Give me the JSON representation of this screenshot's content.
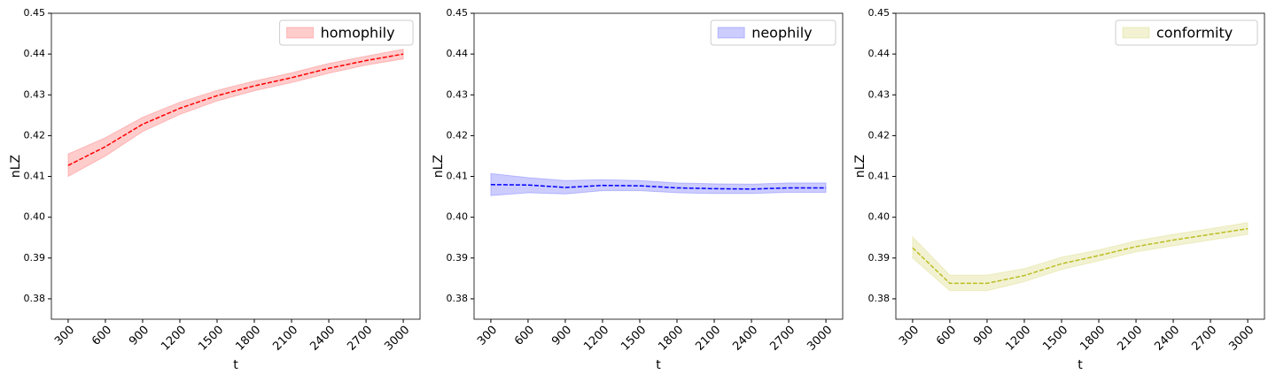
{
  "chart_data": [
    {
      "type": "band-line",
      "xlabel": "t",
      "ylabel": "nLZ",
      "x": [
        300,
        600,
        900,
        1200,
        1500,
        1800,
        2100,
        2400,
        2700,
        3000
      ],
      "xlim": [
        165,
        3135
      ],
      "xticks": [
        300,
        600,
        900,
        1200,
        1500,
        1800,
        2100,
        2400,
        2700,
        3000
      ],
      "ylim": [
        0.375,
        0.45
      ],
      "yticks": [
        0.38,
        0.39,
        {
          "value": 0.4,
          "label": "0.40"
        },
        0.41,
        0.42,
        0.43,
        0.44,
        0.45
      ],
      "legend": "upper right",
      "series": [
        {
          "name": "homophily",
          "color": "#ff0000",
          "values": [
            0.4127,
            0.4173,
            0.4228,
            0.4267,
            0.4298,
            0.4322,
            0.4342,
            0.4365,
            0.4384,
            0.44
          ],
          "lower": [
            0.41,
            0.415,
            0.421,
            0.4252,
            0.4285,
            0.431,
            0.433,
            0.4353,
            0.4373,
            0.4388
          ],
          "upper": [
            0.4155,
            0.4195,
            0.4245,
            0.4282,
            0.4311,
            0.4334,
            0.4354,
            0.4377,
            0.4395,
            0.4412
          ]
        }
      ]
    },
    {
      "type": "band-line",
      "xlabel": "t",
      "ylabel": "nLZ",
      "x": [
        300,
        600,
        900,
        1200,
        1500,
        1800,
        2100,
        2400,
        2700,
        3000
      ],
      "xlim": [
        165,
        3135
      ],
      "xticks": [
        300,
        600,
        900,
        1200,
        1500,
        1800,
        2100,
        2400,
        2700,
        3000
      ],
      "ylim": [
        0.375,
        0.45
      ],
      "yticks": [
        0.38,
        0.39,
        {
          "value": 0.4,
          "label": "0.40"
        },
        0.41,
        0.42,
        0.43,
        0.44,
        0.45
      ],
      "legend": "upper right",
      "series": [
        {
          "name": "neophily",
          "color": "#0000ff",
          "values": [
            0.408,
            0.4079,
            0.4073,
            0.4078,
            0.4077,
            0.4072,
            0.407,
            0.4069,
            0.4072,
            0.4072
          ],
          "lower": [
            0.4053,
            0.406,
            0.4057,
            0.4065,
            0.4065,
            0.406,
            0.4058,
            0.4058,
            0.4061,
            0.4061
          ],
          "upper": [
            0.4107,
            0.4097,
            0.409,
            0.4092,
            0.409,
            0.4084,
            0.4082,
            0.4081,
            0.4084,
            0.4084
          ]
        }
      ]
    },
    {
      "type": "band-line",
      "xlabel": "t",
      "ylabel": "nLZ",
      "x": [
        300,
        600,
        900,
        1200,
        1500,
        1800,
        2100,
        2400,
        2700,
        3000
      ],
      "xlim": [
        165,
        3135
      ],
      "xticks": [
        300,
        600,
        900,
        1200,
        1500,
        1800,
        2100,
        2400,
        2700,
        3000
      ],
      "ylim": [
        0.375,
        0.45
      ],
      "yticks": [
        0.38,
        0.39,
        {
          "value": 0.4,
          "label": "0.40"
        },
        0.41,
        0.42,
        0.43,
        0.44,
        0.45
      ],
      "legend": "upper right",
      "series": [
        {
          "name": "conformity",
          "color": "#bcbd22",
          "values": [
            0.3925,
            0.3838,
            0.3838,
            0.3857,
            0.3886,
            0.3906,
            0.3928,
            0.3944,
            0.3958,
            0.3972
          ],
          "lower": [
            0.39,
            0.382,
            0.382,
            0.3842,
            0.3872,
            0.3893,
            0.3915,
            0.393,
            0.3944,
            0.3958
          ],
          "upper": [
            0.3952,
            0.3858,
            0.3858,
            0.3874,
            0.3902,
            0.392,
            0.3942,
            0.3958,
            0.3972,
            0.3987
          ]
        }
      ]
    }
  ]
}
